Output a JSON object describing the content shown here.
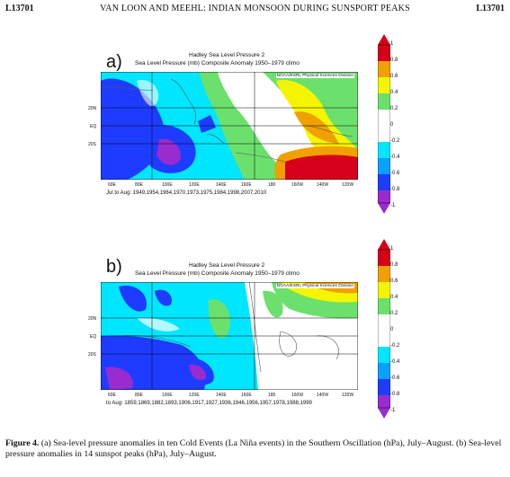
{
  "header": {
    "left": "L13701",
    "center": "VAN LOON AND MEEHL: INDIAN MONSOON DURING SUNSPORT PEAKS",
    "right": "L13701"
  },
  "panels": [
    {
      "letter": "a)",
      "title1": "Hadley Sea Level Pressure 2",
      "title2": "Sea Level Pressure (mb) Composite Anomaly 1950–1979 climo",
      "credit": "NOAA/ESRL Physical Sciences Division",
      "subtitle": "Jul to Aug: 1949,1954,1964,1970,1973,1975,1984,1998,2007,2010",
      "lon_labels": [
        "60E",
        "80E",
        "100E",
        "120E",
        "140E",
        "160E",
        "180",
        "160W",
        "140W",
        "120W"
      ],
      "lat_labels": [
        "20N",
        "EQ",
        "20S"
      ]
    },
    {
      "letter": "b)",
      "title1": "Hadley Sea Level Pressure 2",
      "title2": "Sea Level Pressure (mb) Composite Anomaly 1950–1979 climo",
      "credit": "NOAA/ESRL Physical Sciences Division",
      "subtitle": "to Aug: 1859,1869,1882,1893,1906,1917,1927,1936,1946,1956,1957,1978,1988,1999",
      "lon_labels": [
        "60E",
        "80E",
        "100E",
        "120E",
        "140E",
        "160E",
        "180",
        "160W",
        "140W",
        "120W"
      ],
      "lat_labels": [
        "20N",
        "EQ",
        "20S"
      ]
    }
  ],
  "colorbar": {
    "labels": [
      "1",
      "0.8",
      "0.6",
      "0.4",
      "0.2",
      "0",
      "-0.2",
      "-0.4",
      "-0.6",
      "-0.8",
      "-1"
    ],
    "colors": [
      "#d7001a",
      "#f0a000",
      "#f5f500",
      "#6ce06c",
      "#ffffff",
      "#ffffff",
      "#00e6ff",
      "#0aa0ff",
      "#1e3cff",
      "#9a2bcf"
    ]
  },
  "caption": {
    "label": "Figure 4.",
    "text": "(a) Sea-level pressure anomalies in ten Cold Events (La Niña events) in the Southern Oscillation (hPa), July–August. (b) Sea-level pressure anomalies in 14 sunspot peaks (hPa), July–August."
  }
}
